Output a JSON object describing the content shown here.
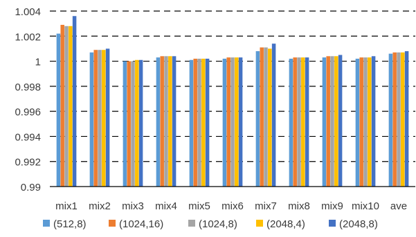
{
  "chart_data": {
    "type": "bar",
    "categories": [
      "mix1",
      "mix2",
      "mix3",
      "mix4",
      "mix5",
      "mix6",
      "mix7",
      "mix8",
      "mix9",
      "mix10",
      "ave"
    ],
    "series": [
      {
        "name": "(512,8)",
        "color": "#5B9BD5",
        "values": [
          1.0022,
          1.0007,
          1.0,
          1.0003,
          1.0001,
          1.0002,
          1.0008,
          1.0002,
          1.0003,
          1.0002,
          1.0006
        ]
      },
      {
        "name": "(1024,16)",
        "color": "#ED7D31",
        "values": [
          1.0029,
          1.0009,
          1.0,
          1.0004,
          1.0002,
          1.0003,
          1.0011,
          1.0003,
          1.0004,
          1.0003,
          1.0007
        ]
      },
      {
        "name": "(1024,8)",
        "color": "#A5A5A5",
        "values": [
          1.0028,
          1.0009,
          1.0,
          1.0004,
          1.0002,
          1.0003,
          1.0011,
          1.0003,
          1.0004,
          1.0003,
          1.0007
        ]
      },
      {
        "name": "(2048,4)",
        "color": "#FFC000",
        "values": [
          1.0028,
          1.0009,
          1.0001,
          1.0004,
          1.0002,
          1.0003,
          1.001,
          1.0003,
          1.0004,
          1.0003,
          1.0007
        ]
      },
      {
        "name": "(2048,8)",
        "color": "#4472C4",
        "values": [
          1.0036,
          1.001,
          1.0001,
          1.0004,
          1.0002,
          1.0003,
          1.0014,
          1.0003,
          1.0005,
          1.0004,
          1.0008
        ]
      }
    ],
    "yticks": [
      "0.99",
      "0.992",
      "0.994",
      "0.996",
      "0.998",
      "1",
      "1.002",
      "1.004"
    ],
    "ylim": [
      0.99,
      1.004
    ],
    "grid": "horizontal dashed",
    "legend": "bottom",
    "title": "",
    "xlabel": "",
    "ylabel": ""
  }
}
